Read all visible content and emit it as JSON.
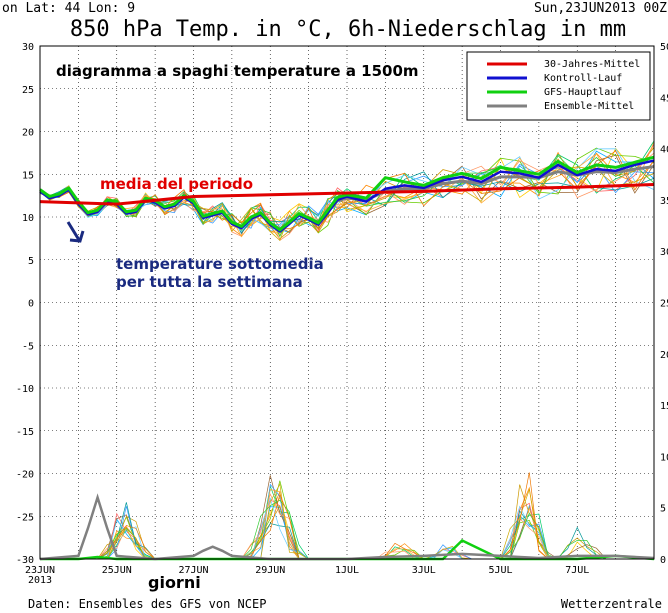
{
  "header": {
    "coords": "on  Lat: 44 Lon: 9",
    "date": "Sun,23JUN2013 00Z",
    "title": "850 hPa Temp. in °C, 6h-Niederschlag in mm"
  },
  "footer": {
    "source": "Daten: Ensembles des GFS von NCEP",
    "brand": "Wetterzentrale"
  },
  "annotations": {
    "headline": "diagramma a spaghi temperature a 1500m",
    "mean_period": "media del periodo",
    "below_line1": "temperature sottomedia",
    "below_line2": "per tutta la settimana",
    "days": "giorni"
  },
  "colors": {
    "mean_30y": "#e00000",
    "control": "#1010d0",
    "gfs_main": "#10d010",
    "ensemble_mean": "#808080",
    "headline_text": "#000000",
    "mean_text": "#e00000",
    "below_text": "#1a2a80",
    "arrow": "#1a2a80"
  },
  "chart_data": {
    "type": "line",
    "title": "850 hPa Temp. in °C, 6h-Niederschlag in mm",
    "xlabel": "giorni",
    "ylabel_left": "",
    "ylabel_right": "",
    "x_unit": "days from 23 Jun 2013 00Z",
    "x_ticks": [
      "23JUN\n2013",
      "25JUN",
      "27JUN",
      "29JUN",
      "1JUL",
      "3JUL",
      "5JUL",
      "7JUL"
    ],
    "xlim": [
      0,
      16
    ],
    "ylim_left": [
      -30,
      30
    ],
    "ylim_right": [
      0,
      50
    ],
    "y_ticks_left": [
      30,
      25,
      20,
      15,
      10,
      5,
      0,
      -5,
      -10,
      -15,
      -20,
      -25,
      -30
    ],
    "y_ticks_right": [
      50,
      45,
      40,
      35,
      30,
      25,
      20,
      15,
      10,
      5,
      0
    ],
    "grid": "dotted",
    "legend": {
      "position": "top-right",
      "entries": [
        "30-Jahres-Mittel",
        "Kontroll-Lauf",
        "GFS-Hauptlauf",
        "Ensemble-Mittel"
      ]
    },
    "series": [
      {
        "name": "30-Jahres-Mittel",
        "axis": "left",
        "x": [
          0,
          2,
          4,
          6,
          8,
          10,
          12,
          14,
          16
        ],
        "values": [
          11.8,
          11.5,
          12.4,
          12.6,
          12.8,
          13.0,
          13.3,
          13.5,
          13.8
        ]
      },
      {
        "name": "Kontroll-Lauf",
        "axis": "left",
        "x": [
          0,
          0.25,
          0.5,
          0.75,
          1,
          1.25,
          1.5,
          1.75,
          2,
          2.25,
          2.5,
          2.75,
          3,
          3.25,
          3.5,
          3.75,
          4,
          4.25,
          4.5,
          4.75,
          5,
          5.25,
          5.5,
          5.75,
          6,
          6.25,
          6.5,
          6.75,
          7,
          7.25,
          7.5,
          7.75,
          8,
          8.5,
          9,
          9.5,
          10,
          10.5,
          11,
          11.5,
          12,
          12.5,
          13,
          13.5,
          14,
          14.5,
          15,
          15.5,
          16
        ],
        "values": [
          13,
          12.2,
          12.5,
          13.2,
          11.5,
          10.3,
          10.6,
          11.8,
          11.5,
          10.4,
          10.6,
          12,
          11.7,
          11,
          11.3,
          12.3,
          11.6,
          9.9,
          10.2,
          10.5,
          9.2,
          8.7,
          9.8,
          10.3,
          9.1,
          8.3,
          9.2,
          10.2,
          9.7,
          9.1,
          10.5,
          12,
          12.4,
          11.8,
          13.3,
          13.7,
          13.4,
          14.3,
          14.7,
          14.1,
          15.3,
          15.1,
          14.6,
          16.1,
          14.9,
          15.6,
          15.4,
          16.1,
          16.6
        ]
      },
      {
        "name": "GFS-Hauptlauf",
        "axis": "left",
        "x": [
          0,
          0.25,
          0.5,
          0.75,
          1,
          1.25,
          1.5,
          1.75,
          2,
          2.25,
          2.5,
          2.75,
          3,
          3.25,
          3.5,
          3.75,
          4,
          4.25,
          4.5,
          4.75,
          5,
          5.25,
          5.5,
          5.75,
          6,
          6.25,
          6.5,
          6.75,
          7,
          7.25,
          7.5,
          7.75,
          8,
          8.5,
          9,
          9.5,
          10,
          10.5,
          11,
          11.5,
          12,
          12.5,
          13,
          13.5,
          14,
          14.5,
          15,
          15.5,
          16
        ],
        "values": [
          13.2,
          12.4,
          12.7,
          13.4,
          11.8,
          10.5,
          10.8,
          12,
          11.8,
          10.6,
          10.8,
          12.2,
          11.9,
          11.2,
          11.5,
          12.5,
          11.8,
          10.1,
          10.4,
          10.7,
          9.4,
          8.9,
          10,
          10.5,
          9.3,
          8.5,
          9.4,
          10.4,
          9.9,
          9.3,
          10.8,
          12.3,
          12.6,
          12.2,
          14.6,
          14.1,
          13.7,
          14.6,
          15.1,
          14.5,
          15.8,
          15.4,
          15,
          16.5,
          15.2,
          16.1,
          15.8,
          16.4,
          17
        ]
      },
      {
        "name": "Ensemble-Mittel",
        "axis": "left",
        "x": [
          0,
          0.25,
          0.5,
          0.75,
          1,
          1.25,
          1.5,
          1.75,
          2,
          2.25,
          2.5,
          2.75,
          3,
          3.25,
          3.5,
          3.75,
          4,
          4.25,
          4.5,
          4.75,
          5,
          5.25,
          5.5,
          5.75,
          6,
          6.25,
          6.5,
          6.75,
          7,
          7.25,
          7.5,
          7.75,
          8,
          8.5,
          9,
          9.5,
          10,
          10.5,
          11,
          11.5,
          12,
          12.5,
          13,
          13.5,
          14,
          14.5,
          15,
          15.5,
          16
        ],
        "values": [
          13,
          12.3,
          12.6,
          13.3,
          11.6,
          10.4,
          10.7,
          11.9,
          11.6,
          10.5,
          10.7,
          12.1,
          11.8,
          11.1,
          11.4,
          12.4,
          11.7,
          10.1,
          10.3,
          10.6,
          9.4,
          8.9,
          9.9,
          10.4,
          9.3,
          8.6,
          9.4,
          10.3,
          9.9,
          9.4,
          10.6,
          11.9,
          12.2,
          12,
          13,
          13.3,
          13.3,
          13.9,
          14.2,
          13.9,
          14.7,
          14.7,
          14.6,
          15.3,
          14.9,
          15.3,
          15.2,
          15.6,
          15.9
        ]
      }
    ],
    "precipitation": {
      "axis": "right",
      "unit": "mm",
      "series": [
        {
          "name": "GFS-Hauptlauf",
          "x": [
            0,
            1,
            1.5,
            2,
            5,
            9,
            10,
            10.5,
            11,
            12,
            13,
            13.5,
            14,
            15,
            16
          ],
          "values": [
            0,
            0,
            0.2,
            0,
            0,
            0,
            0,
            0,
            1.8,
            0,
            0,
            0,
            0,
            0.3,
            0
          ]
        },
        {
          "name": "Ensemble-Mittel",
          "x": [
            0,
            1,
            1.25,
            1.5,
            1.75,
            2,
            3,
            4,
            4.25,
            4.5,
            4.75,
            5,
            6,
            8,
            9,
            10,
            11,
            12,
            13,
            14,
            15,
            16
          ],
          "values": [
            0,
            0.3,
            3,
            6,
            3,
            0.3,
            0,
            0.3,
            0.8,
            1.2,
            0.8,
            0.3,
            0,
            0,
            0.2,
            0.3,
            0.5,
            0.3,
            0.1,
            0.3,
            0.3,
            0.1
          ]
        }
      ]
    }
  }
}
